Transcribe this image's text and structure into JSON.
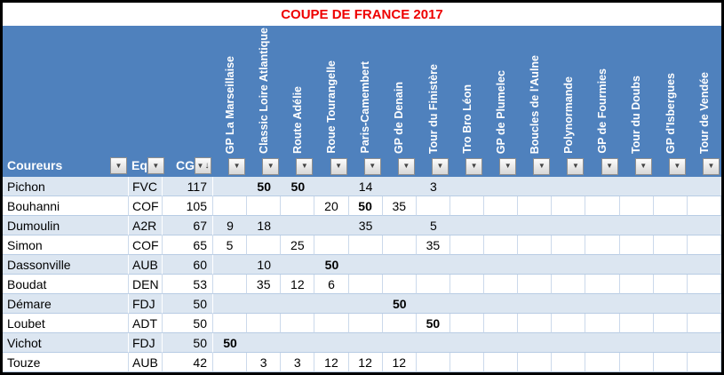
{
  "title": "COUPE DE FRANCE 2017",
  "colors": {
    "header_blue": "#4F81BD",
    "band": "#DCE6F1",
    "grid": "#B8CCE4",
    "title_red": "#EE0000"
  },
  "icons": {
    "filter_arrow": "▼",
    "sort_desc_arrow": "↓"
  },
  "table": {
    "columns": {
      "coureurs": "Coureurs",
      "eq": "Eq",
      "cg": "CG"
    },
    "races": [
      "GP La Marseillaise",
      "Classic Loire Atlantique",
      "Route Adélie",
      "Roue Tourangelle",
      "Paris-Camembert",
      "GP de Denain",
      "Tour du Finistère",
      "Tro Bro Léon",
      "GP de Plumelec",
      "Boucles de l'Aulne",
      "Polynormande",
      "GP de Fourmies",
      "Tour du Doubs",
      "GP d'Isbergues",
      "Tour de Vendée"
    ],
    "rows": [
      {
        "coureur": "Pichon",
        "eq": "FVC",
        "cg": "117",
        "points": [
          "",
          "50",
          "50",
          "",
          "14",
          "",
          "3",
          "",
          "",
          "",
          "",
          "",
          "",
          "",
          ""
        ]
      },
      {
        "coureur": "Bouhanni",
        "eq": "COF",
        "cg": "105",
        "points": [
          "",
          "",
          "",
          "20",
          "50",
          "35",
          "",
          "",
          "",
          "",
          "",
          "",
          "",
          "",
          ""
        ]
      },
      {
        "coureur": "Dumoulin",
        "eq": "A2R",
        "cg": "67",
        "points": [
          "9",
          "18",
          "",
          "",
          "35",
          "",
          "5",
          "",
          "",
          "",
          "",
          "",
          "",
          "",
          ""
        ]
      },
      {
        "coureur": "Simon",
        "eq": "COF",
        "cg": "65",
        "points": [
          "5",
          "",
          "25",
          "",
          "",
          "",
          "35",
          "",
          "",
          "",
          "",
          "",
          "",
          "",
          ""
        ]
      },
      {
        "coureur": "Dassonville",
        "eq": "AUB",
        "cg": "60",
        "points": [
          "",
          "10",
          "",
          "50",
          "",
          "",
          "",
          "",
          "",
          "",
          "",
          "",
          "",
          "",
          ""
        ]
      },
      {
        "coureur": "Boudat",
        "eq": "DEN",
        "cg": "53",
        "points": [
          "",
          "35",
          "12",
          "6",
          "",
          "",
          "",
          "",
          "",
          "",
          "",
          "",
          "",
          "",
          ""
        ]
      },
      {
        "coureur": "Démare",
        "eq": "FDJ",
        "cg": "50",
        "points": [
          "",
          "",
          "",
          "",
          "",
          "50",
          "",
          "",
          "",
          "",
          "",
          "",
          "",
          "",
          ""
        ]
      },
      {
        "coureur": "Loubet",
        "eq": "ADT",
        "cg": "50",
        "points": [
          "",
          "",
          "",
          "",
          "",
          "",
          "50",
          "",
          "",
          "",
          "",
          "",
          "",
          "",
          ""
        ]
      },
      {
        "coureur": "Vichot",
        "eq": "FDJ",
        "cg": "50",
        "points": [
          "50",
          "",
          "",
          "",
          "",
          "",
          "",
          "",
          "",
          "",
          "",
          "",
          "",
          "",
          ""
        ]
      },
      {
        "coureur": "Touze",
        "eq": "AUB",
        "cg": "42",
        "points": [
          "",
          "3",
          "3",
          "12",
          "12",
          "12",
          "",
          "",
          "",
          "",
          "",
          "",
          "",
          "",
          ""
        ]
      }
    ]
  }
}
